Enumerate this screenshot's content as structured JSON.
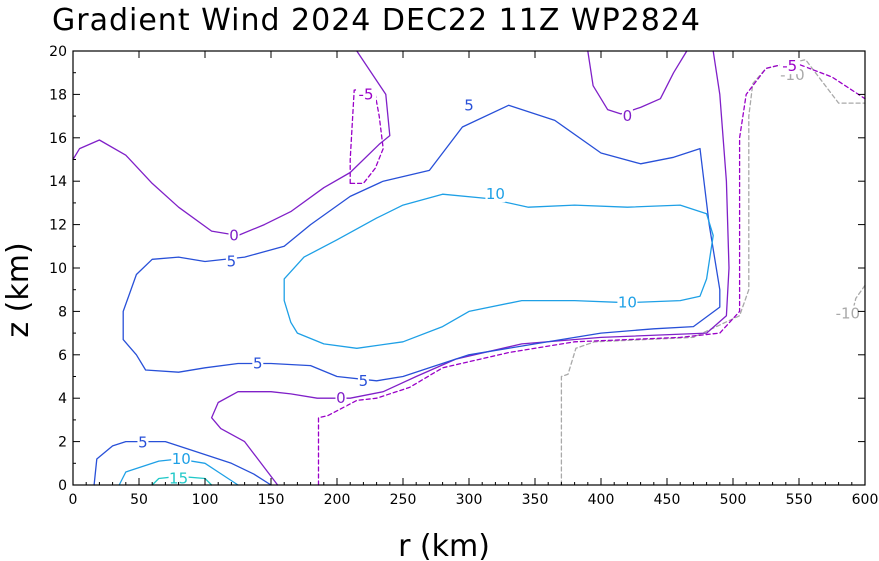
{
  "chart_data": {
    "type": "contour",
    "title": "Gradient Wind 2024 DEC22 11Z  WP2824",
    "xlabel": "r (km)",
    "ylabel": "z (km)",
    "xlim": [
      0,
      600
    ],
    "ylim": [
      0,
      20
    ],
    "xticks": [
      0,
      50,
      100,
      150,
      200,
      250,
      300,
      350,
      400,
      450,
      500,
      550,
      600
    ],
    "yticks": [
      0,
      2,
      4,
      6,
      8,
      10,
      12,
      14,
      16,
      18,
      20
    ],
    "grid": false,
    "contours": [
      {
        "level": -10,
        "color": "#a9a9a9",
        "dashed": true,
        "paths": [
          [
            [
              370,
              0
            ],
            [
              370,
              5
            ],
            [
              375,
              5.1
            ],
            [
              381,
              6.3
            ],
            [
              395,
              6.6
            ],
            [
              470,
              6.8
            ],
            [
              505,
              7.8
            ],
            [
              512,
              9
            ],
            [
              512,
              14
            ],
            [
              512,
              17
            ],
            [
              515,
              18.5
            ],
            [
              525,
              19.2
            ],
            [
              555,
              19.6
            ],
            [
              580,
              17.6
            ],
            [
              600,
              17.6
            ]
          ],
          [
            [
              600,
              9.2
            ],
            [
              593,
              8.6
            ],
            [
              589,
              7.6
            ],
            [
              582,
              7.6
            ]
          ]
        ],
        "labels": [
          {
            "text": "-10",
            "x": 545,
            "y": 18.9
          },
          {
            "text": "-10",
            "x": 587,
            "y": 7.9
          }
        ]
      },
      {
        "level": -5,
        "color": "#9a00c8",
        "dashed": true,
        "paths": [
          [
            [
              186,
              0
            ],
            [
              186,
              3.1
            ],
            [
              193,
              3.2
            ],
            [
              215,
              3.9
            ],
            [
              230,
              4.0
            ],
            [
              255,
              4.5
            ],
            [
              280,
              5.4
            ],
            [
              330,
              6.1
            ],
            [
              380,
              6.6
            ],
            [
              460,
              6.8
            ],
            [
              490,
              7.0
            ],
            [
              505,
              8
            ],
            [
              505,
              12
            ],
            [
              505,
              16
            ],
            [
              510,
              18
            ],
            [
              525,
              19.2
            ],
            [
              545,
              19.5
            ],
            [
              575,
              18.8
            ],
            [
              600,
              17.8
            ]
          ],
          [
            [
              210,
              13.9
            ],
            [
              210,
              15
            ],
            [
              213,
              18.2
            ],
            [
              228,
              18.3
            ],
            [
              232,
              17
            ],
            [
              235,
              15.5
            ],
            [
              229,
              14.6
            ],
            [
              220,
              13.9
            ],
            [
              210,
              13.9
            ]
          ]
        ],
        "labels": [
          {
            "text": "-5",
            "x": 543,
            "y": 19.3
          },
          {
            "text": "-5",
            "x": 222,
            "y": 18.0
          }
        ]
      },
      {
        "level": 0,
        "color": "#8020c8",
        "dashed": false,
        "paths": [
          [
            [
              0,
              15
            ],
            [
              5,
              15.5
            ],
            [
              20,
              15.9
            ],
            [
              40,
              15.2
            ],
            [
              60,
              13.9
            ],
            [
              80,
              12.8
            ],
            [
              105,
              11.7
            ],
            [
              125,
              11.5
            ],
            [
              145,
              12
            ],
            [
              165,
              12.6
            ],
            [
              190,
              13.7
            ],
            [
              210,
              14.4
            ],
            [
              232,
              15.7
            ],
            [
              240,
              16.1
            ],
            [
              237,
              18
            ],
            [
              215,
              20
            ]
          ],
          [
            [
              155,
              0
            ],
            [
              130,
              2
            ],
            [
              112,
              2.6
            ],
            [
              105,
              3.1
            ],
            [
              110,
              3.8
            ],
            [
              125,
              4.3
            ],
            [
              150,
              4.3
            ],
            [
              165,
              4.2
            ],
            [
              185,
              4.0
            ],
            [
              210,
              4.0
            ],
            [
              235,
              4.3
            ],
            [
              260,
              5.0
            ],
            [
              290,
              5.8
            ],
            [
              340,
              6.5
            ],
            [
              400,
              6.8
            ],
            [
              480,
              7.0
            ],
            [
              495,
              7.8
            ],
            [
              497,
              10
            ],
            [
              495,
              14
            ],
            [
              490,
              18
            ],
            [
              485,
              20
            ]
          ],
          [
            [
              390,
              20
            ],
            [
              394,
              18.4
            ],
            [
              405,
              17.3
            ],
            [
              415,
              17.1
            ],
            [
              430,
              17.4
            ],
            [
              445,
              17.8
            ],
            [
              455,
              19
            ],
            [
              465,
              20
            ]
          ]
        ],
        "labels": [
          {
            "text": "0",
            "x": 122,
            "y": 11.5
          },
          {
            "text": "0",
            "x": 203,
            "y": 4.0
          },
          {
            "text": "0",
            "x": 420,
            "y": 17.0
          }
        ]
      },
      {
        "level": 5,
        "color": "#2850d8",
        "dashed": false,
        "paths": [
          [
            [
              16,
              0
            ],
            [
              18,
              1.2
            ],
            [
              30,
              1.8
            ],
            [
              40,
              2
            ],
            [
              70,
              2.0
            ],
            [
              90,
              1.6
            ],
            [
              120,
              1.0
            ],
            [
              137,
              0.5
            ],
            [
              150,
              0
            ]
          ],
          [
            [
              180,
              5.5
            ],
            [
              150,
              5.6
            ],
            [
              125,
              5.6
            ],
            [
              100,
              5.4
            ],
            [
              80,
              5.2
            ],
            [
              55,
              5.3
            ],
            [
              48,
              6
            ],
            [
              38,
              6.7
            ],
            [
              38,
              8
            ],
            [
              48,
              9.7
            ],
            [
              60,
              10.4
            ],
            [
              80,
              10.5
            ],
            [
              100,
              10.3
            ],
            [
              130,
              10.5
            ],
            [
              160,
              11.0
            ],
            [
              180,
              12.0
            ],
            [
              210,
              13.3
            ],
            [
              235,
              14
            ],
            [
              270,
              14.5
            ],
            [
              295,
              16.5
            ],
            [
              330,
              17.5
            ],
            [
              365,
              16.8
            ],
            [
              400,
              15.3
            ],
            [
              430,
              14.8
            ],
            [
              455,
              15.1
            ],
            [
              475,
              15.5
            ],
            [
              482,
              12
            ],
            [
              490,
              9
            ],
            [
              490,
              8.2
            ],
            [
              470,
              7.3
            ],
            [
              440,
              7.2
            ],
            [
              400,
              7.0
            ],
            [
              350,
              6.5
            ],
            [
              300,
              6.0
            ],
            [
              270,
              5.4
            ],
            [
              250,
              5.0
            ],
            [
              230,
              4.8
            ],
            [
              200,
              5.0
            ],
            [
              180,
              5.5
            ]
          ]
        ],
        "labels": [
          {
            "text": "5",
            "x": 53,
            "y": 1.95
          },
          {
            "text": "5",
            "x": 120,
            "y": 10.3
          },
          {
            "text": "5",
            "x": 140,
            "y": 5.6
          },
          {
            "text": "5",
            "x": 220,
            "y": 4.8
          },
          {
            "text": "5",
            "x": 300,
            "y": 17.5
          }
        ]
      },
      {
        "level": 10,
        "color": "#1ea0e6",
        "dashed": false,
        "paths": [
          [
            [
              35,
              0
            ],
            [
              40,
              0.6
            ],
            [
              65,
              1.1
            ],
            [
              80,
              1.2
            ],
            [
              100,
              1.0
            ],
            [
              110,
              0.6
            ],
            [
              125,
              0
            ]
          ],
          [
            [
              165,
              7.5
            ],
            [
              170,
              7
            ],
            [
              190,
              6.5
            ],
            [
              215,
              6.3
            ],
            [
              250,
              6.6
            ],
            [
              280,
              7.3
            ],
            [
              300,
              8
            ],
            [
              340,
              8.5
            ],
            [
              380,
              8.5
            ],
            [
              420,
              8.4
            ],
            [
              460,
              8.5
            ],
            [
              475,
              8.7
            ],
            [
              480,
              9.5
            ],
            [
              485,
              11.5
            ],
            [
              480,
              12.5
            ],
            [
              460,
              12.9
            ],
            [
              420,
              12.8
            ],
            [
              380,
              12.9
            ],
            [
              345,
              12.8
            ],
            [
              315,
              13.2
            ],
            [
              280,
              13.4
            ],
            [
              250,
              12.9
            ],
            [
              230,
              12.3
            ],
            [
              200,
              11.3
            ],
            [
              175,
              10.5
            ],
            [
              160,
              9.5
            ],
            [
              160,
              8.5
            ],
            [
              165,
              7.5
            ]
          ]
        ],
        "labels": [
          {
            "text": "10",
            "x": 82,
            "y": 1.2
          },
          {
            "text": "10",
            "x": 320,
            "y": 13.4
          },
          {
            "text": "10",
            "x": 420,
            "y": 8.4
          }
        ]
      },
      {
        "level": 15,
        "color": "#20c8c8",
        "dashed": false,
        "paths": [
          [
            [
              60,
              0
            ],
            [
              65,
              0.3
            ],
            [
              80,
              0.4
            ],
            [
              100,
              0.3
            ],
            [
              105,
              0
            ]
          ]
        ],
        "labels": [
          {
            "text": "15",
            "x": 80,
            "y": 0.3
          }
        ]
      }
    ]
  }
}
